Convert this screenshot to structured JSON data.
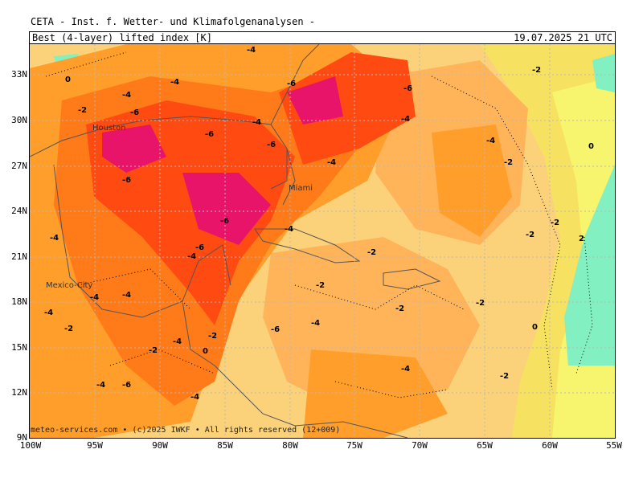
{
  "header": {
    "source": "CETA - Inst. f. Wetter- und Klimafolgenanalysen -",
    "product": "Best (4-layer) lifted index [K]",
    "valid_time": "19.07.2025 21 UTC"
  },
  "axes": {
    "lat_labels": [
      "33N",
      "30N",
      "27N",
      "24N",
      "21N",
      "18N",
      "15N",
      "12N",
      "9N"
    ],
    "lon_labels": [
      "100W",
      "95W",
      "90W",
      "85W",
      "80W",
      "75W",
      "70W",
      "65W",
      "60W",
      "55W"
    ]
  },
  "places": [
    "Houston",
    "Miami",
    "Mexico-City"
  ],
  "contour_labels": [
    "-4",
    "-6",
    "-2",
    "0",
    "2"
  ],
  "footer": {
    "text": "meteo-services.com • (c)2025 IWKF • All rights reserved (12+009)"
  },
  "colors": {
    "strong": "#e8146a",
    "very_unstable": "#ff4a12",
    "unstable": "#ff7a18",
    "moderate": "#ff9e2a",
    "slight": "#ffb45a",
    "weak": "#fbd27a",
    "neutral": "#f6e260",
    "stable_light": "#f7f56e",
    "stable": "#82f0c0",
    "grid": "#b8b8b8"
  }
}
